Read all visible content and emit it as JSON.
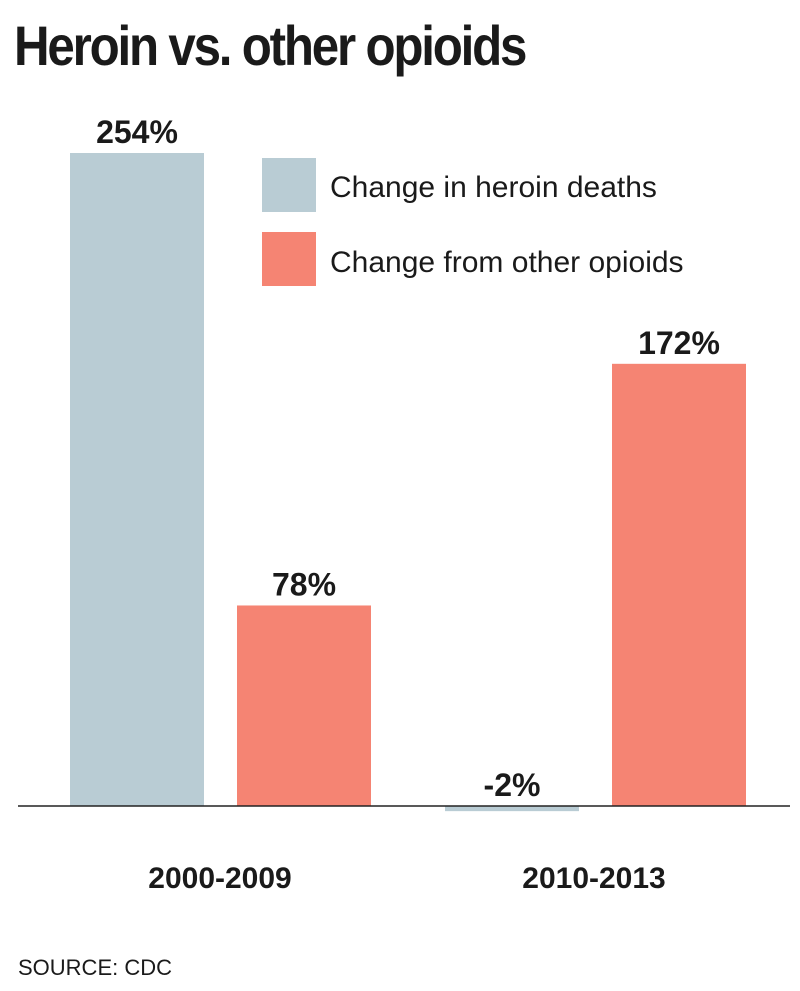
{
  "chart_data": {
    "type": "bar",
    "title": "Heroin vs. other opioids",
    "categories": [
      "2000-2009",
      "2010-2013"
    ],
    "series": [
      {
        "name": "Change in heroin deaths",
        "values": [
          254,
          -2
        ],
        "labels": [
          "254%",
          "-2%"
        ],
        "color": "#b9ccd4"
      },
      {
        "name": "Change from other opioids",
        "values": [
          78,
          172
        ],
        "labels": [
          "78%",
          "172%"
        ],
        "color": "#f58473"
      }
    ],
    "ylim": [
      -2,
      254
    ],
    "value_unit": "%",
    "grid": false,
    "legend": "top-right",
    "source": "SOURCE: CDC"
  }
}
